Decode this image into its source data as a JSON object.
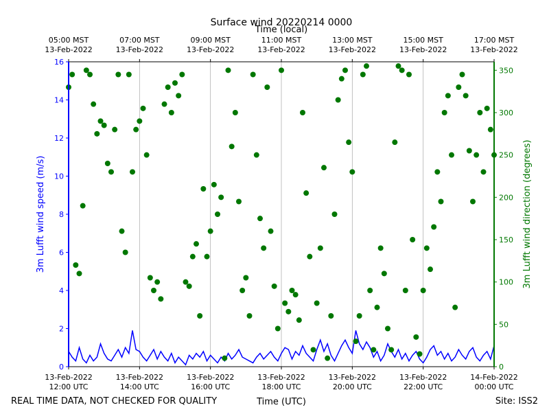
{
  "chart_data": {
    "type": "line",
    "title": "Surface wind 20220214 0000",
    "x2label": "Time (local)",
    "xlabel": "Time (UTC)",
    "ylabel": "3m Lufft wind speed (m/s)",
    "y2label": "3m Lufft wind direction (degrees)",
    "footer_left": "REAL TIME DATA, NOT CHECKED FOR QUALITY",
    "footer_right": "Site: ISS2",
    "xlim": [
      12,
      24
    ],
    "xticks": [
      {
        "value": 12,
        "label": "13-Feb-2022\n12:00 UTC"
      },
      {
        "value": 14,
        "label": "13-Feb-2022\n14:00 UTC"
      },
      {
        "value": 16,
        "label": "13-Feb-2022\n16:00 UTC"
      },
      {
        "value": 18,
        "label": "13-Feb-2022\n18:00 UTC"
      },
      {
        "value": 20,
        "label": "13-Feb-2022\n20:00 UTC"
      },
      {
        "value": 22,
        "label": "13-Feb-2022\n22:00 UTC"
      },
      {
        "value": 24,
        "label": "14-Feb-2022\n00:00 UTC"
      }
    ],
    "x2ticks": [
      {
        "value": 12,
        "label": "05:00 MST\n13-Feb-2022"
      },
      {
        "value": 14,
        "label": "07:00 MST\n13-Feb-2022"
      },
      {
        "value": 16,
        "label": "09:00 MST\n13-Feb-2022"
      },
      {
        "value": 18,
        "label": "11:00 MST\n13-Feb-2022"
      },
      {
        "value": 20,
        "label": "13:00 MST\n13-Feb-2022"
      },
      {
        "value": 22,
        "label": "15:00 MST\n13-Feb-2022"
      },
      {
        "value": 24,
        "label": "17:00 MST\n13-Feb-2022"
      }
    ],
    "ylim": [
      0,
      16
    ],
    "yticks": [
      0,
      2,
      4,
      6,
      8,
      10,
      12,
      14,
      16
    ],
    "y2lim": [
      0,
      360
    ],
    "y2ticks": [
      0,
      50,
      100,
      150,
      200,
      250,
      300,
      350
    ],
    "grid": "x",
    "x": [
      12,
      12.1,
      12.2,
      12.3,
      12.4,
      12.5,
      12.6,
      12.7,
      12.8,
      12.9,
      13,
      13.1,
      13.2,
      13.3,
      13.4,
      13.5,
      13.6,
      13.7,
      13.8,
      13.9,
      14,
      14.1,
      14.2,
      14.3,
      14.4,
      14.5,
      14.6,
      14.7,
      14.8,
      14.9,
      15,
      15.1,
      15.2,
      15.3,
      15.4,
      15.5,
      15.6,
      15.7,
      15.8,
      15.9,
      16,
      16.1,
      16.2,
      16.3,
      16.4,
      16.5,
      16.6,
      16.7,
      16.8,
      16.9,
      17,
      17.1,
      17.2,
      17.3,
      17.4,
      17.5,
      17.6,
      17.7,
      17.8,
      17.9,
      18,
      18.1,
      18.2,
      18.3,
      18.4,
      18.5,
      18.6,
      18.7,
      18.8,
      18.9,
      19,
      19.1,
      19.2,
      19.3,
      19.4,
      19.5,
      19.6,
      19.7,
      19.8,
      19.9,
      20,
      20.1,
      20.2,
      20.3,
      20.4,
      20.5,
      20.6,
      20.7,
      20.8,
      20.9,
      21,
      21.1,
      21.2,
      21.3,
      21.4,
      21.5,
      21.6,
      21.7,
      21.8,
      21.9,
      22,
      22.1,
      22.2,
      22.3,
      22.4,
      22.5,
      22.6,
      22.7,
      22.8,
      22.9,
      23,
      23.1,
      23.2,
      23.3,
      23.4,
      23.5,
      23.6,
      23.7,
      23.8,
      23.9,
      24
    ],
    "series": [
      {
        "type": "line",
        "color": "#0000ff",
        "axis": "y",
        "values": [
          0.8,
          0.5,
          0.3,
          1.0,
          0.4,
          0.2,
          0.6,
          0.3,
          0.5,
          1.2,
          0.7,
          0.4,
          0.3,
          0.6,
          0.9,
          0.5,
          1.0,
          0.7,
          1.9,
          0.9,
          0.8,
          0.5,
          0.3,
          0.6,
          0.9,
          0.4,
          0.8,
          0.5,
          0.3,
          0.7,
          0.2,
          0.5,
          0.3,
          0.1,
          0.6,
          0.4,
          0.7,
          0.5,
          0.8,
          0.3,
          0.6,
          0.4,
          0.2,
          0.5,
          0.3,
          0.7,
          0.4,
          0.6,
          0.9,
          0.5,
          0.4,
          0.3,
          0.2,
          0.5,
          0.7,
          0.4,
          0.6,
          0.8,
          0.5,
          0.3,
          0.7,
          1.0,
          0.9,
          0.4,
          0.8,
          0.6,
          1.1,
          0.7,
          0.5,
          0.3,
          0.9,
          1.4,
          0.8,
          1.2,
          0.6,
          0.3,
          0.7,
          1.1,
          1.4,
          1.0,
          0.7,
          1.9,
          1.2,
          0.9,
          1.3,
          1.0,
          0.5,
          0.8,
          0.3,
          0.6,
          1.2,
          0.8,
          0.5,
          0.9,
          0.4,
          0.7,
          0.3,
          0.6,
          0.8,
          0.4,
          0.2,
          0.5,
          0.9,
          1.1,
          0.6,
          0.8,
          0.4,
          0.7,
          0.3,
          0.5,
          0.9,
          0.6,
          0.4,
          0.8,
          1.0,
          0.5,
          0.3,
          0.6,
          0.8,
          0.4,
          1.1
        ]
      },
      {
        "type": "scatter",
        "color": "#007700",
        "axis": "y2",
        "values": [
          330,
          345,
          120,
          110,
          190,
          350,
          345,
          310,
          275,
          290,
          285,
          240,
          230,
          280,
          345,
          160,
          135,
          345,
          230,
          280,
          290,
          305,
          250,
          105,
          90,
          100,
          80,
          310,
          330,
          300,
          335,
          320,
          345,
          100,
          95,
          130,
          145,
          60,
          210,
          130,
          160,
          215,
          180,
          200,
          10,
          350,
          260,
          300,
          195,
          90,
          105,
          60,
          345,
          250,
          175,
          140,
          330,
          160,
          95,
          45,
          350,
          75,
          65,
          90,
          85,
          55,
          300,
          205,
          130,
          20,
          75,
          140,
          235,
          10,
          60,
          180,
          315,
          340,
          350,
          265,
          230,
          30,
          60,
          345,
          355,
          90,
          20,
          70,
          140,
          110,
          45,
          20,
          265,
          355,
          350,
          90,
          345,
          150,
          35,
          15,
          90,
          140,
          115,
          165,
          230,
          195,
          300,
          320,
          250,
          70,
          330,
          345,
          320,
          255,
          195,
          250,
          300,
          230,
          305,
          280,
          250
        ]
      }
    ]
  }
}
